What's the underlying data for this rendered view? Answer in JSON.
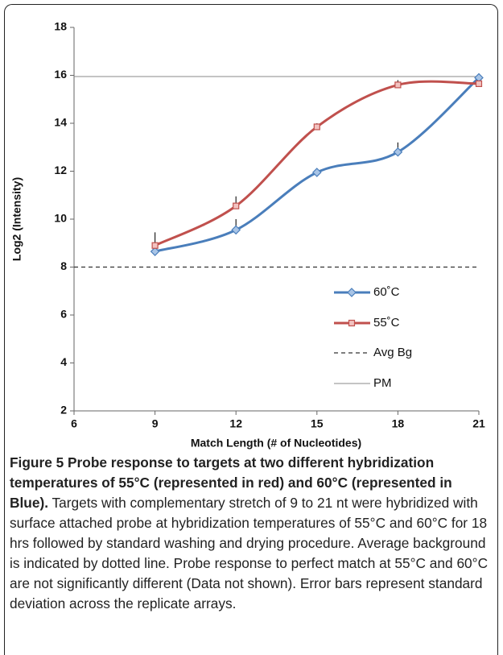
{
  "chart_data": {
    "type": "line",
    "xlabel": "Match Length (# of Nucleotides)",
    "ylabel": "Log2 (Intensity)",
    "x": [
      9,
      12,
      15,
      18,
      21
    ],
    "xlim": [
      6,
      21
    ],
    "xticks": [
      6,
      9,
      12,
      15,
      18,
      21
    ],
    "ylim": [
      2,
      18
    ],
    "yticks": [
      2,
      4,
      6,
      8,
      10,
      12,
      14,
      16,
      18
    ],
    "smooth": true,
    "grid": false,
    "series": [
      {
        "name": "60˚C",
        "color": "#4a7ebb",
        "marker": "diamond",
        "values": [
          8.65,
          9.55,
          11.95,
          12.8,
          15.9
        ],
        "errors": [
          0.1,
          0.45,
          0.1,
          0.4,
          0.1
        ]
      },
      {
        "name": "55˚C",
        "color": "#c0504d",
        "marker": "square",
        "values": [
          8.9,
          10.55,
          13.85,
          15.6,
          15.65
        ],
        "errors": [
          0.55,
          0.4,
          0.15,
          0.2,
          0.1
        ]
      }
    ],
    "reference_lines": [
      {
        "name": "Avg Bg",
        "value": 8,
        "style": "dashed",
        "color": "#333333"
      },
      {
        "name": "PM",
        "value": 15.95,
        "style": "solid",
        "color": "#888888"
      }
    ]
  },
  "caption": {
    "label": "Figure 5",
    "title": "Probe response to targets at two different hybridization temperatures of 55°C (represented in red) and 60°C (represented in Blue).",
    "text": "Targets with complementary stretch of 9 to 21 nt were hybridized with surface attached probe at hybridization temperatures of 55°C and 60°C for 18 hrs followed by standard washing and drying procedure. Average background is indicated by dotted line. Probe response to perfect match at 55°C and 60°C are not significantly different (Data not shown). Error bars represent standard deviation across the replicate arrays."
  }
}
